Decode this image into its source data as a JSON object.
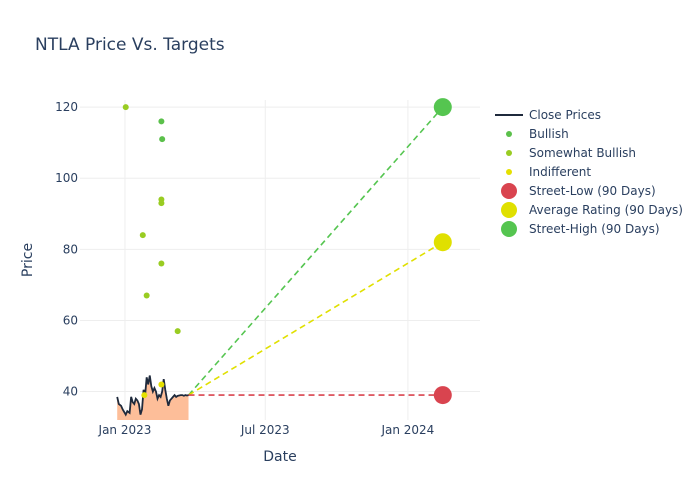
{
  "chart_data": {
    "type": "line",
    "title": "NTLA Price Vs. Targets",
    "xlabel": "Date",
    "ylabel": "Price",
    "ylim": [
      32,
      122
    ],
    "xlim": [
      "2022-11-04",
      "2024-04-03"
    ],
    "x_ticks": [
      {
        "date": "2023-01-01",
        "label": "Jan 2023"
      },
      {
        "date": "2023-07-01",
        "label": "Jul 2023"
      },
      {
        "date": "2024-01-01",
        "label": "Jan 2024"
      }
    ],
    "y_ticks": [
      40,
      60,
      80,
      100,
      120
    ],
    "legend": [
      "Close Prices",
      "Bullish",
      "Somewhat Bullish",
      "Indifferent",
      "Street-Low (90 Days)",
      "Average Rating (90 Days)",
      "Street-High (90 Days)"
    ],
    "colors": {
      "close": "#1f2a3c",
      "fill": "#fdbe99",
      "bullish": "#5bc04b",
      "somewhat_bullish": "#99cc22",
      "indifferent": "#e5e000",
      "street_low": "#d9444f",
      "average": "#e0e000",
      "street_high": "#55c550",
      "grid": "#eeeeee"
    },
    "close_prices": {
      "dates": [
        "2022-12-22",
        "2022-12-24",
        "2022-12-27",
        "2022-12-29",
        "2023-01-02",
        "2023-01-04",
        "2023-01-07",
        "2023-01-09",
        "2023-01-11",
        "2023-01-13",
        "2023-01-15",
        "2023-01-17",
        "2023-01-19",
        "2023-01-21",
        "2023-01-23",
        "2023-01-25",
        "2023-01-27",
        "2023-01-29",
        "2023-01-31",
        "2023-02-02",
        "2023-02-04",
        "2023-02-06",
        "2023-02-08",
        "2023-02-10",
        "2023-02-12",
        "2023-02-14",
        "2023-02-16",
        "2023-02-18",
        "2023-02-20",
        "2023-02-22",
        "2023-02-24",
        "2023-02-26",
        "2023-02-28",
        "2023-03-02",
        "2023-03-04",
        "2023-03-06",
        "2023-03-08",
        "2023-03-10",
        "2023-03-12",
        "2023-03-14",
        "2023-03-16",
        "2023-03-18",
        "2023-03-20",
        "2023-03-22",
        "2023-03-24"
      ],
      "values": [
        38.5,
        36.5,
        36,
        35,
        33.5,
        34.5,
        34,
        38.5,
        37,
        36.5,
        38,
        37.5,
        36.5,
        33.5,
        35,
        40.5,
        39,
        44,
        42,
        44.5,
        41.5,
        40,
        41,
        40,
        38,
        39,
        38.5,
        40,
        43.5,
        40.5,
        38,
        36,
        37.5,
        38,
        38.5,
        39,
        38.5,
        38.8,
        38.9,
        39,
        39,
        38.8,
        39,
        38.9,
        39
      ]
    },
    "bullish_targets": [
      {
        "date": "2023-02-17",
        "value": 116
      },
      {
        "date": "2023-02-18",
        "value": 111
      }
    ],
    "somewhat_bullish_targets": [
      {
        "date": "2023-01-02",
        "value": 120
      },
      {
        "date": "2023-01-24",
        "value": 84
      },
      {
        "date": "2023-02-17",
        "value": 94
      },
      {
        "date": "2023-02-17",
        "value": 93
      },
      {
        "date": "2023-02-17",
        "value": 76
      },
      {
        "date": "2023-01-29",
        "value": 67
      },
      {
        "date": "2023-03-10",
        "value": 57
      }
    ],
    "indifferent_targets": [
      {
        "date": "2023-01-26",
        "value": 39
      },
      {
        "date": "2023-02-17",
        "value": 42
      }
    ],
    "projection_start": {
      "date": "2023-03-24",
      "value": 39
    },
    "street_low": {
      "date": "2024-02-15",
      "value": 39
    },
    "average_rating": {
      "date": "2024-02-15",
      "value": 82
    },
    "street_high": {
      "date": "2024-02-15",
      "value": 120
    }
  }
}
